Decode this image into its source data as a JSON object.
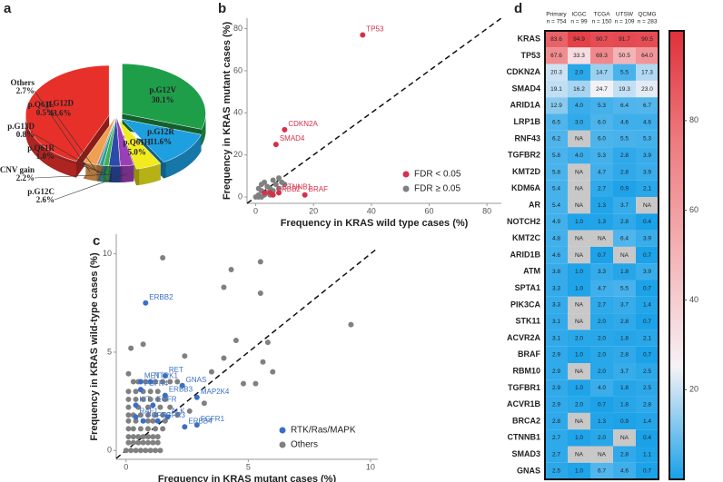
{
  "chart_data": [
    {
      "type": "pie",
      "panel": "a",
      "categories": [
        "p.G12D",
        "p.G12V",
        "p.G12R",
        "p.Q61H",
        "p.G12C",
        "CNV gain",
        "p.Q61R",
        "p.G13D",
        "p.Q61L",
        "Others"
      ],
      "values": [
        43.6,
        30.1,
        11.6,
        5.0,
        2.6,
        2.2,
        1.0,
        0.8,
        0.5,
        2.7
      ],
      "value_labels": [
        "43.6%",
        "30.1%",
        "11.6%",
        "5.0%",
        "2.6%",
        "2.2%",
        "1.0%",
        "0.8%",
        "0.5%",
        "2.7%"
      ],
      "colors": [
        "#e8302a",
        "#1f9e4a",
        "#1e9fe0",
        "#f2ec1e",
        "#9b3fb5",
        "#2c4aa8",
        "#3fb04f",
        "#2aa0a0",
        "#8a8a8a",
        "#f0a050"
      ]
    },
    {
      "type": "scatter",
      "panel": "b",
      "xlabel": "Frequency in KRAS wild type cases (%)",
      "ylabel": "Frequency in KRAS mutant cases (%)",
      "xlim": [
        -3,
        85
      ],
      "ylim": [
        -3,
        85
      ],
      "xticks": [
        0,
        20,
        40,
        60,
        80
      ],
      "yticks": [
        0,
        20,
        40,
        60,
        80
      ],
      "legend": "lower right",
      "series": [
        {
          "name": "FDR < 0.05",
          "color": "#d6304a",
          "x": [
            37,
            10,
            7,
            8,
            17,
            6,
            3,
            5
          ],
          "y": [
            77,
            32,
            25,
            2,
            1,
            1,
            2,
            2
          ],
          "labels": [
            "TP53",
            "CDKN2A",
            "SMAD4",
            "CTNNB1",
            "BRAF",
            "ERBB2",
            null,
            null
          ]
        },
        {
          "name": "FDR ≥ 0.05",
          "color": "#808080",
          "x": [
            1,
            2,
            3,
            4,
            5,
            6,
            7,
            8,
            9,
            2,
            4,
            1,
            3,
            5,
            6,
            8,
            10,
            0,
            1,
            2
          ],
          "y": [
            1,
            3,
            1,
            5,
            4,
            8,
            6,
            9,
            7,
            6,
            2,
            4,
            7,
            1,
            3,
            4,
            6,
            0,
            0,
            0
          ]
        }
      ]
    },
    {
      "type": "scatter",
      "panel": "c",
      "xlabel": "Frequency in KRAS mutant cases (%)",
      "ylabel": "Frequency in KRAS wild-type cases (%)",
      "xlim": [
        -0.4,
        10.3
      ],
      "ylim": [
        -0.45,
        11
      ],
      "xticks": [
        0,
        5,
        10
      ],
      "yticks": [
        0,
        5,
        10
      ],
      "legend": "lower right",
      "series": [
        {
          "name": "RTK/Ras/MAPK",
          "color": "#3a6fc4",
          "x": [
            0.8,
            1.6,
            0.6,
            1.0,
            2.3,
            0.6,
            1.6,
            2.9,
            0.4,
            1.1,
            0.4,
            1.7,
            0.7,
            1.3,
            2.9,
            2.4
          ],
          "y": [
            7.5,
            3.8,
            3.5,
            3.5,
            3.3,
            3.1,
            2.8,
            2.7,
            2.3,
            2.3,
            1.7,
            1.7,
            1.5,
            1.5,
            1.3,
            1.2
          ],
          "labels": [
            "ERBB2",
            "RET",
            "MET",
            "NTRK1",
            "GNAS",
            "FGFR4",
            "ERBB3",
            "MAP2K4",
            "KIT",
            "EGFR",
            "RAF1",
            "ALK",
            "FGFR2",
            "FGFR3",
            "FGFR1",
            "ERBB4"
          ]
        },
        {
          "name": "Others",
          "color": "#808080",
          "x": [
            1.5,
            4.3,
            5.5,
            4.0,
            5.5,
            9.2,
            4.5,
            5.8,
            4.0,
            5.6,
            6.0,
            3.5,
            4.8,
            5.3,
            2.4,
            0.2,
            0.7,
            3.2,
            2.6,
            2.1,
            0.1,
            0.3,
            0.5,
            0.8,
            1.2,
            1.5,
            1.8,
            0.1,
            0.4,
            0.7,
            1.0,
            1.3,
            0.1,
            0.4,
            0.7,
            1.0,
            1.3,
            1.6,
            0.1,
            0.5,
            0.9,
            1.4,
            1.8,
            0.1,
            0.3,
            0.6,
            0.9,
            1.2,
            1.5,
            2.1,
            0.1,
            0.4,
            0.9,
            1.1,
            1.6,
            0.1,
            0.3,
            0.6,
            0.9,
            1.2,
            1.5,
            0.1,
            0.3,
            0.5,
            0.7,
            0.9,
            1.1,
            1.3,
            0.1,
            0.3,
            0.5,
            0.7,
            0.9,
            1.1,
            1.3,
            0.0,
            0.2,
            0.4,
            0.6,
            0.8,
            1.0,
            1.2,
            1.4
          ],
          "y": [
            9.8,
            9.2,
            9.6,
            8.3,
            8.0,
            6.4,
            5.6,
            5.5,
            4.7,
            4.5,
            4.0,
            4.0,
            3.4,
            3.4,
            4.8,
            5.2,
            5.4,
            2.4,
            2.0,
            3.5,
            3.9,
            3.5,
            3.5,
            3.5,
            3.5,
            3.5,
            3.5,
            3.0,
            3.0,
            3.0,
            3.0,
            3.0,
            2.6,
            2.6,
            2.6,
            2.6,
            2.6,
            2.6,
            2.2,
            2.2,
            2.2,
            2.2,
            2.2,
            1.8,
            1.8,
            1.8,
            1.8,
            1.8,
            1.8,
            1.8,
            1.5,
            1.5,
            1.5,
            1.5,
            1.5,
            1.1,
            1.1,
            1.1,
            1.1,
            1.1,
            1.1,
            0.7,
            0.7,
            0.7,
            0.7,
            0.7,
            0.7,
            0.7,
            0.4,
            0.4,
            0.4,
            0.4,
            0.4,
            0.4,
            0.4,
            0.0,
            0.0,
            0.0,
            0.0,
            0.0,
            0.0,
            0.0,
            0.0
          ]
        }
      ]
    },
    {
      "type": "heatmap",
      "panel": "d",
      "columns": [
        "Primary",
        "ICGC",
        "TCGA",
        "UTSW",
        "QCMG"
      ],
      "column_n": [
        "n = 754",
        "n = 99",
        "n = 150",
        "n = 109",
        "n = 283"
      ],
      "rows": [
        "KRAS",
        "TP53",
        "CDKN2A",
        "SMAD4",
        "ARID1A",
        "LRP1B",
        "RNF43",
        "TGFBR2",
        "KMT2D",
        "KDM6A",
        "AR",
        "NOTCH2",
        "KMT2C",
        "ARID1B",
        "ATM",
        "SPTA1",
        "PIK3CA",
        "STK11",
        "ACVR2A",
        "BRAF",
        "RBM10",
        "TGFBR1",
        "ACVR1B",
        "BRCA2",
        "CTNNB1",
        "SMAD3",
        "GNAS"
      ],
      "values": [
        [
          83.6,
          94.9,
          90.7,
          91.7,
          90.5
        ],
        [
          67.6,
          33.3,
          69.3,
          50.5,
          64.0
        ],
        [
          20.3,
          2.0,
          14.7,
          5.5,
          17.3
        ],
        [
          19.1,
          16.2,
          24.7,
          19.3,
          23.0
        ],
        [
          12.9,
          4.0,
          5.3,
          6.4,
          6.7
        ],
        [
          6.5,
          3.0,
          6.0,
          4.6,
          4.6
        ],
        [
          6.2,
          null,
          6.0,
          5.5,
          5.3
        ],
        [
          5.8,
          4.0,
          5.3,
          2.8,
          3.9
        ],
        [
          5.8,
          null,
          4.7,
          2.8,
          3.9
        ],
        [
          5.4,
          null,
          2.7,
          0.9,
          2.1
        ],
        [
          5.4,
          null,
          1.3,
          3.7,
          null
        ],
        [
          4.9,
          1.0,
          1.3,
          2.8,
          0.4
        ],
        [
          4.8,
          null,
          null,
          6.4,
          3.9
        ],
        [
          4.6,
          null,
          0.7,
          null,
          0.7
        ],
        [
          3.8,
          1.0,
          3.3,
          1.8,
          3.9
        ],
        [
          3.3,
          1.0,
          4.7,
          5.5,
          0.7
        ],
        [
          3.3,
          null,
          2.7,
          3.7,
          1.4
        ],
        [
          3.1,
          null,
          2.0,
          2.8,
          0.7
        ],
        [
          3.1,
          2.0,
          2.0,
          1.8,
          2.1
        ],
        [
          2.9,
          1.0,
          2.0,
          2.8,
          0.7
        ],
        [
          2.9,
          null,
          2.0,
          3.7,
          2.5
        ],
        [
          2.9,
          1.0,
          4.0,
          1.8,
          2.5
        ],
        [
          2.9,
          2.0,
          0.7,
          1.8,
          2.8
        ],
        [
          2.8,
          null,
          1.3,
          0.9,
          1.4
        ],
        [
          2.7,
          1.0,
          2.0,
          null,
          0.4
        ],
        [
          2.7,
          null,
          null,
          2.8,
          1.1
        ],
        [
          2.5,
          1.0,
          6.7,
          4.6,
          0.7
        ]
      ],
      "value_labels": [
        [
          "83.6",
          "94.9",
          "90.7",
          "91.7",
          "90.5"
        ],
        [
          "67.6",
          "33.3",
          "69.3",
          "50.5",
          "64.0"
        ],
        [
          "20.3",
          "2.0",
          "14.7",
          "5.5",
          "17.3"
        ],
        [
          "19.1",
          "16.2",
          "24.7",
          "19.3",
          "23.0"
        ],
        [
          "12.9",
          "4.0",
          "5.3",
          "6.4",
          "6.7"
        ],
        [
          "6.5",
          "3.0",
          "6.0",
          "4.6",
          "4.6"
        ],
        [
          "6.2",
          "NA",
          "6.0",
          "5.5",
          "5.3"
        ],
        [
          "5.8",
          "4.0",
          "5.3",
          "2.8",
          "3.9"
        ],
        [
          "5.8",
          "NA",
          "4.7",
          "2.8",
          "3.9"
        ],
        [
          "5.4",
          "NA",
          "2.7",
          "0.9",
          "2.1"
        ],
        [
          "5.4",
          "NA",
          "1.3",
          "3.7",
          "NA"
        ],
        [
          "4.9",
          "1.0",
          "1.3",
          "2.8",
          "0.4"
        ],
        [
          "4.8",
          "NA",
          "NA",
          "6.4",
          "3.9"
        ],
        [
          "4.6",
          "NA",
          "0.7",
          "NA",
          "0.7"
        ],
        [
          "3.8",
          "1.0",
          "3.3",
          "1.8",
          "3.9"
        ],
        [
          "3.3",
          "1.0",
          "4.7",
          "5.5",
          "0.7"
        ],
        [
          "3.3",
          "NA",
          "2.7",
          "3.7",
          "1.4"
        ],
        [
          "3.1",
          "NA",
          "2.0",
          "2.8",
          "0.7"
        ],
        [
          "3.1",
          "2.0",
          "2.0",
          "1.8",
          "2.1"
        ],
        [
          "2.9",
          "1.0",
          "2.0",
          "2.8",
          "0.7"
        ],
        [
          "2.9",
          "NA",
          "2.0",
          "3.7",
          "2.5"
        ],
        [
          "2.9",
          "1.0",
          "4.0",
          "1.8",
          "2.5"
        ],
        [
          "2.9",
          "2.0",
          "0.7",
          "1.8",
          "2.8"
        ],
        [
          "2.8",
          "NA",
          "1.3",
          "0.9",
          "1.4"
        ],
        [
          "2.7",
          "1.0",
          "2.0",
          "NA",
          "0.4"
        ],
        [
          "2.7",
          "NA",
          "NA",
          "2.8",
          "1.1"
        ],
        [
          "2.5",
          "1.0",
          "6.7",
          "4.6",
          "0.7"
        ]
      ],
      "zlim": [
        0,
        100
      ],
      "colorbar_ticks": [
        20,
        40,
        60,
        80
      ],
      "colormap": [
        "#16a0e8",
        "#f6f2f6",
        "#f4b4b7",
        "#ee7c80",
        "#e0303a"
      ],
      "na_color": "#c8c8c8"
    }
  ]
}
